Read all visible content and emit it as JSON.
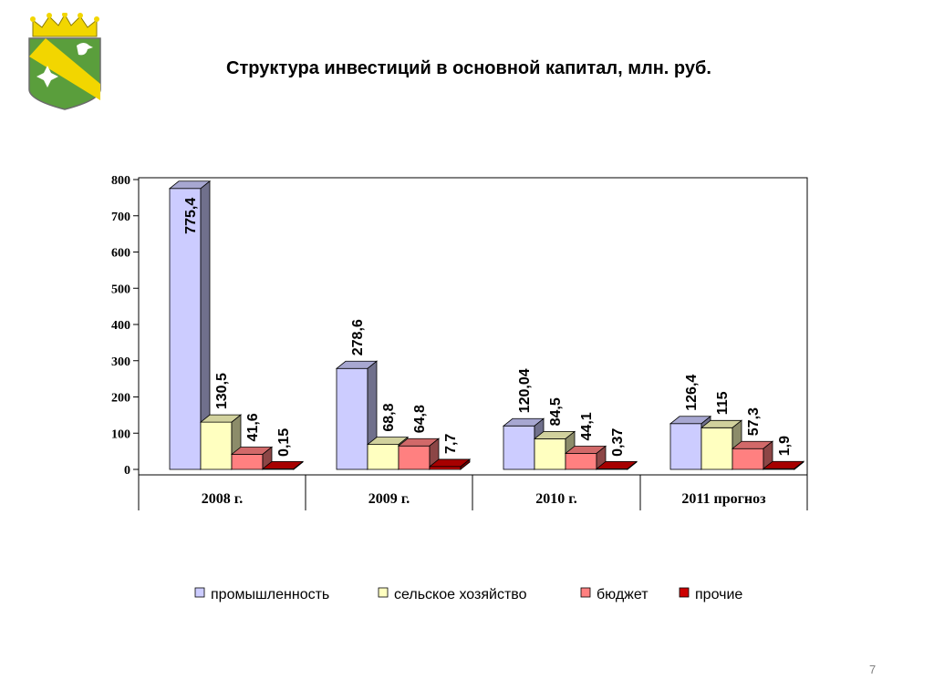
{
  "slide": {
    "title": "Структура инвестиций в основной капитал, млн. руб.",
    "page_number": "7"
  },
  "emblem": {
    "icon": "coat-of-arms-icon",
    "colors": {
      "shield": "#5a9e3c",
      "band": "#f2d600",
      "crown": "#f2d600"
    }
  },
  "chart_data": {
    "type": "bar",
    "style": "3d-clustered",
    "categories": [
      "2008 г.",
      "2009 г.",
      "2010 г.",
      "2011 прогноз"
    ],
    "series": [
      {
        "name": "промышленность",
        "values": [
          775.4,
          278.6,
          120.04,
          126.4
        ],
        "labels": [
          "775,4",
          "278,6",
          "120,04",
          "126,4"
        ],
        "color": "#ccccff"
      },
      {
        "name": "сельское хозяйство",
        "values": [
          130.5,
          68.8,
          84.5,
          115
        ],
        "labels": [
          "130,5",
          "68,8",
          "84,5",
          "115"
        ],
        "color": "#ffffc0"
      },
      {
        "name": "бюджет",
        "values": [
          41.6,
          64.8,
          44.1,
          57.3
        ],
        "labels": [
          "41,6",
          "64,8",
          "44,1",
          "57,3"
        ],
        "color": "#ff8080"
      },
      {
        "name": "прочие",
        "values": [
          0.15,
          7.7,
          0.37,
          1.9
        ],
        "labels": [
          "0,15",
          "7,7",
          "0,37",
          "1,9"
        ],
        "color": "#cc0000"
      }
    ],
    "yticks": [
      "0",
      "100",
      "200",
      "300",
      "400",
      "500",
      "600",
      "700",
      "800"
    ],
    "ylim": [
      0,
      800
    ],
    "grid": false,
    "legend": "bottom"
  }
}
